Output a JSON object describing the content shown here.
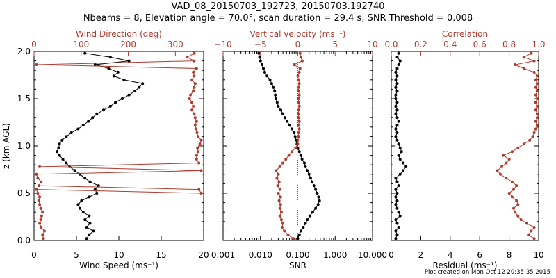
{
  "header": {
    "title": "VAD_08_20150703_192723, 20150703.192740",
    "subtitle": "Nbeams = 8, Elevation angle = 70.0°, scan duration = 29.4 s, SNR Threshold = 0.008"
  },
  "footer": "Plot created on Mon Oct 12 20:35:35 2015",
  "colors": {
    "black": "#000000",
    "red": "#b03a2e"
  },
  "chart_data": [
    {
      "type": "line",
      "panel": "left",
      "ylabel": "z (km AGL)",
      "ylim": [
        0,
        2
      ],
      "y_ticks": [
        "0.0",
        "0.5",
        "1.0",
        "1.5",
        "2.0"
      ],
      "bottom_axis": {
        "label": "Wind Speed (ms⁻¹)",
        "range": [
          0,
          20
        ],
        "ticks": [
          "0",
          "5",
          "10",
          "15",
          "20"
        ]
      },
      "top_axis": {
        "label": "Wind Direction (deg)",
        "range": [
          0,
          360
        ],
        "ticks": [
          "0",
          "100",
          "200",
          "300"
        ]
      },
      "series": [
        {
          "axis": "bottom",
          "color": "#000000",
          "z": [
            0.02,
            0.06,
            0.1,
            0.14,
            0.18,
            0.22,
            0.26,
            0.3,
            0.34,
            0.38,
            0.42,
            0.46,
            0.5,
            0.54,
            0.58,
            0.62,
            0.66,
            0.7,
            0.74,
            0.78,
            0.82,
            0.86,
            0.9,
            0.94,
            0.98,
            1.02,
            1.06,
            1.1,
            1.14,
            1.18,
            1.22,
            1.26,
            1.3,
            1.34,
            1.38,
            1.42,
            1.46,
            1.5,
            1.54,
            1.58,
            1.62,
            1.66,
            1.7,
            1.74,
            1.78,
            1.82,
            1.86,
            1.9,
            1.94,
            1.98
          ],
          "x": [
            6.2,
            6.5,
            7,
            6.2,
            6.6,
            6.0,
            6.5,
            5.8,
            5.4,
            5.2,
            5.6,
            6.5,
            7.4,
            7.2,
            7.6,
            6.6,
            6.0,
            5.4,
            4.8,
            4.2,
            3.8,
            3.4,
            3.0,
            2.7,
            2.9,
            3.0,
            3.3,
            3.8,
            4.4,
            5.2,
            5.8,
            6.4,
            6.9,
            7.4,
            8.2,
            9.0,
            9.6,
            10.4,
            11.2,
            11.9,
            12.4,
            12.8,
            10.6,
            9.4,
            9.9,
            8.8,
            7.2,
            11.2,
            9.0,
            6.0
          ]
        },
        {
          "axis": "top",
          "color": "#b03a2e",
          "z": [
            0.02,
            0.06,
            0.1,
            0.14,
            0.18,
            0.22,
            0.26,
            0.3,
            0.34,
            0.38,
            0.42,
            0.46,
            0.5,
            0.54,
            0.5,
            0.54,
            0.58,
            0.62,
            0.66,
            0.7,
            0.74,
            0.78,
            0.82,
            0.86,
            0.9,
            0.94,
            0.98,
            1.02,
            1.06,
            1.1,
            1.14,
            1.18,
            1.22,
            1.26,
            1.3,
            1.34,
            1.38,
            1.42,
            1.46,
            1.5,
            1.54,
            1.58,
            1.62,
            1.66,
            1.7,
            1.74,
            1.78,
            1.82,
            1.86,
            1.9,
            1.94,
            1.98
          ],
          "x": [
            20,
            18,
            22,
            15,
            12,
            14,
            16,
            18,
            14,
            12,
            10,
            12,
            8,
            5,
            355,
            350,
            10,
            15,
            8,
            5,
            355,
            12,
            350,
            345,
            345,
            348,
            347,
            352,
            355,
            348,
            346,
            344,
            342,
            345,
            342,
            340,
            335,
            338,
            335,
            330,
            332,
            338,
            340,
            342,
            335,
            340,
            338,
            345,
            5,
            340,
            325,
            340
          ]
        }
      ]
    },
    {
      "type": "line",
      "panel": "middle",
      "ylim": [
        0,
        2
      ],
      "bottom_axis": {
        "label": "SNR",
        "scale": "log",
        "range": [
          0.001,
          10
        ],
        "ticks": [
          "0.001",
          "0.010",
          "0.100",
          "1.000",
          "10.000"
        ]
      },
      "top_axis": {
        "label": "Vertical velocity (ms⁻¹)",
        "range": [
          -10,
          10
        ],
        "ticks": [
          "−10",
          "−5",
          "0",
          "5",
          "10"
        ]
      },
      "series": [
        {
          "axis": "bottom",
          "color": "#000000",
          "z": [
            0.02,
            0.06,
            0.1,
            0.14,
            0.18,
            0.22,
            0.26,
            0.3,
            0.34,
            0.38,
            0.42,
            0.46,
            0.5,
            0.54,
            0.58,
            0.62,
            0.66,
            0.7,
            0.74,
            0.78,
            0.82,
            0.86,
            0.9,
            0.94,
            0.98,
            1.02,
            1.06,
            1.1,
            1.14,
            1.18,
            1.22,
            1.26,
            1.3,
            1.34,
            1.38,
            1.42,
            1.46,
            1.5,
            1.54,
            1.58,
            1.62,
            1.66,
            1.7,
            1.74,
            1.78,
            1.82,
            1.86,
            1.9,
            1.94,
            1.98
          ],
          "x": [
            0.1,
            0.11,
            0.12,
            0.14,
            0.16,
            0.18,
            0.21,
            0.25,
            0.3,
            0.35,
            0.38,
            0.36,
            0.33,
            0.3,
            0.27,
            0.24,
            0.22,
            0.2,
            0.18,
            0.16,
            0.15,
            0.13,
            0.12,
            0.11,
            0.1,
            0.095,
            0.09,
            0.085,
            0.08,
            0.07,
            0.06,
            0.052,
            0.045,
            0.04,
            0.035,
            0.03,
            0.028,
            0.026,
            0.025,
            0.024,
            0.022,
            0.02,
            0.018,
            0.015,
            0.013,
            0.012,
            0.011,
            0.01,
            0.0095,
            0.009
          ]
        },
        {
          "axis": "top",
          "color": "#b03a2e",
          "z": [
            0.02,
            0.06,
            0.1,
            0.14,
            0.18,
            0.22,
            0.26,
            0.3,
            0.34,
            0.38,
            0.42,
            0.46,
            0.5,
            0.54,
            0.58,
            0.62,
            0.66,
            0.7,
            0.74,
            0.78,
            0.82,
            0.86,
            0.9,
            0.94,
            0.98,
            1.02,
            1.06,
            1.1,
            1.14,
            1.18,
            1.22,
            1.26,
            1.3,
            1.34,
            1.38,
            1.42,
            1.46,
            1.5,
            1.54,
            1.58,
            1.62,
            1.66,
            1.7,
            1.74,
            1.78,
            1.82,
            1.86,
            1.9,
            1.94,
            1.98
          ],
          "x": [
            -0.6,
            -1.3,
            -1.8,
            -2.1,
            -2.0,
            -2.2,
            -2.4,
            -2.2,
            -2.4,
            -2.3,
            -2.5,
            -2.3,
            -2.6,
            -2.4,
            -2.7,
            -2.5,
            -2.8,
            -2.6,
            -2.9,
            -2.4,
            -2.0,
            -1.6,
            -1.2,
            -0.8,
            -0.3,
            0.0,
            0.0,
            0.1,
            0.1,
            0.2,
            0.1,
            0.2,
            0.1,
            0.1,
            0.1,
            0.2,
            0.1,
            0.1,
            0.2,
            0.1,
            0.1,
            0.2,
            0.1,
            0.0,
            0.2,
            0.3,
            -0.5,
            0.6,
            0.4,
            0.3
          ]
        }
      ],
      "reference_line": {
        "axis": "top",
        "x": 0,
        "style": "dotted",
        "color": "#b03a2e"
      }
    },
    {
      "type": "line",
      "panel": "right",
      "ylim": [
        0,
        2
      ],
      "bottom_axis": {
        "label": "Residual (ms⁻¹)",
        "range": [
          0,
          10
        ],
        "ticks": [
          "0",
          "2",
          "4",
          "6",
          "8",
          "10"
        ]
      },
      "top_axis": {
        "label": "Correlation",
        "range": [
          0,
          1
        ],
        "ticks": [
          "0.0",
          "0.2",
          "0.4",
          "0.6",
          "0.8",
          "1.0"
        ]
      },
      "series": [
        {
          "axis": "bottom",
          "color": "#000000",
          "z": [
            0.02,
            0.06,
            0.1,
            0.14,
            0.18,
            0.22,
            0.26,
            0.3,
            0.34,
            0.38,
            0.42,
            0.46,
            0.5,
            0.54,
            0.58,
            0.62,
            0.66,
            0.7,
            0.74,
            0.78,
            0.82,
            0.86,
            0.9,
            0.94,
            0.98,
            1.02,
            1.06,
            1.1,
            1.14,
            1.18,
            1.22,
            1.26,
            1.3,
            1.34,
            1.38,
            1.42,
            1.46,
            1.5,
            1.54,
            1.58,
            1.62,
            1.66,
            1.7,
            1.74,
            1.78,
            1.82,
            1.86,
            1.9,
            1.94,
            1.98
          ],
          "x": [
            0.3,
            0.4,
            0.3,
            0.5,
            0.4,
            0.3,
            0.6,
            0.5,
            0.4,
            0.3,
            0.4,
            0.3,
            0.4,
            0.3,
            0.5,
            0.4,
            0.3,
            0.6,
            0.8,
            1.0,
            0.8,
            0.6,
            0.5,
            0.7,
            0.6,
            0.5,
            0.4,
            0.3,
            0.4,
            0.3,
            0.4,
            0.5,
            0.4,
            0.3,
            0.4,
            0.3,
            0.4,
            0.3,
            0.3,
            0.4,
            0.3,
            0.4,
            0.3,
            0.4,
            0.3,
            0.4,
            0.5,
            0.6,
            0.4,
            0.5
          ]
        },
        {
          "axis": "top",
          "color": "#b03a2e",
          "z": [
            0.02,
            0.06,
            0.1,
            0.14,
            0.18,
            0.22,
            0.26,
            0.3,
            0.34,
            0.38,
            0.42,
            0.46,
            0.5,
            0.54,
            0.58,
            0.62,
            0.66,
            0.7,
            0.74,
            0.78,
            0.82,
            0.86,
            0.9,
            0.94,
            0.98,
            1.02,
            1.06,
            1.1,
            1.14,
            1.18,
            1.22,
            1.26,
            1.3,
            1.34,
            1.38,
            1.42,
            1.46,
            1.5,
            1.54,
            1.58,
            1.62,
            1.66,
            1.7,
            1.74,
            1.78,
            1.82,
            1.86,
            1.9,
            1.94,
            1.98
          ],
          "x": [
            0.97,
            0.93,
            0.95,
            0.97,
            0.92,
            0.88,
            0.86,
            0.84,
            0.83,
            0.86,
            0.85,
            0.82,
            0.8,
            0.83,
            0.85,
            0.82,
            0.78,
            0.74,
            0.72,
            0.75,
            0.78,
            0.8,
            0.76,
            0.82,
            0.86,
            0.9,
            0.94,
            0.96,
            0.97,
            0.98,
            0.99,
            0.98,
            0.99,
            0.99,
            0.98,
            0.99,
            0.98,
            0.99,
            0.98,
            0.99,
            0.98,
            0.99,
            0.98,
            0.99,
            0.97,
            0.9,
            0.84,
            0.97,
            0.9,
            0.95
          ]
        }
      ]
    }
  ]
}
